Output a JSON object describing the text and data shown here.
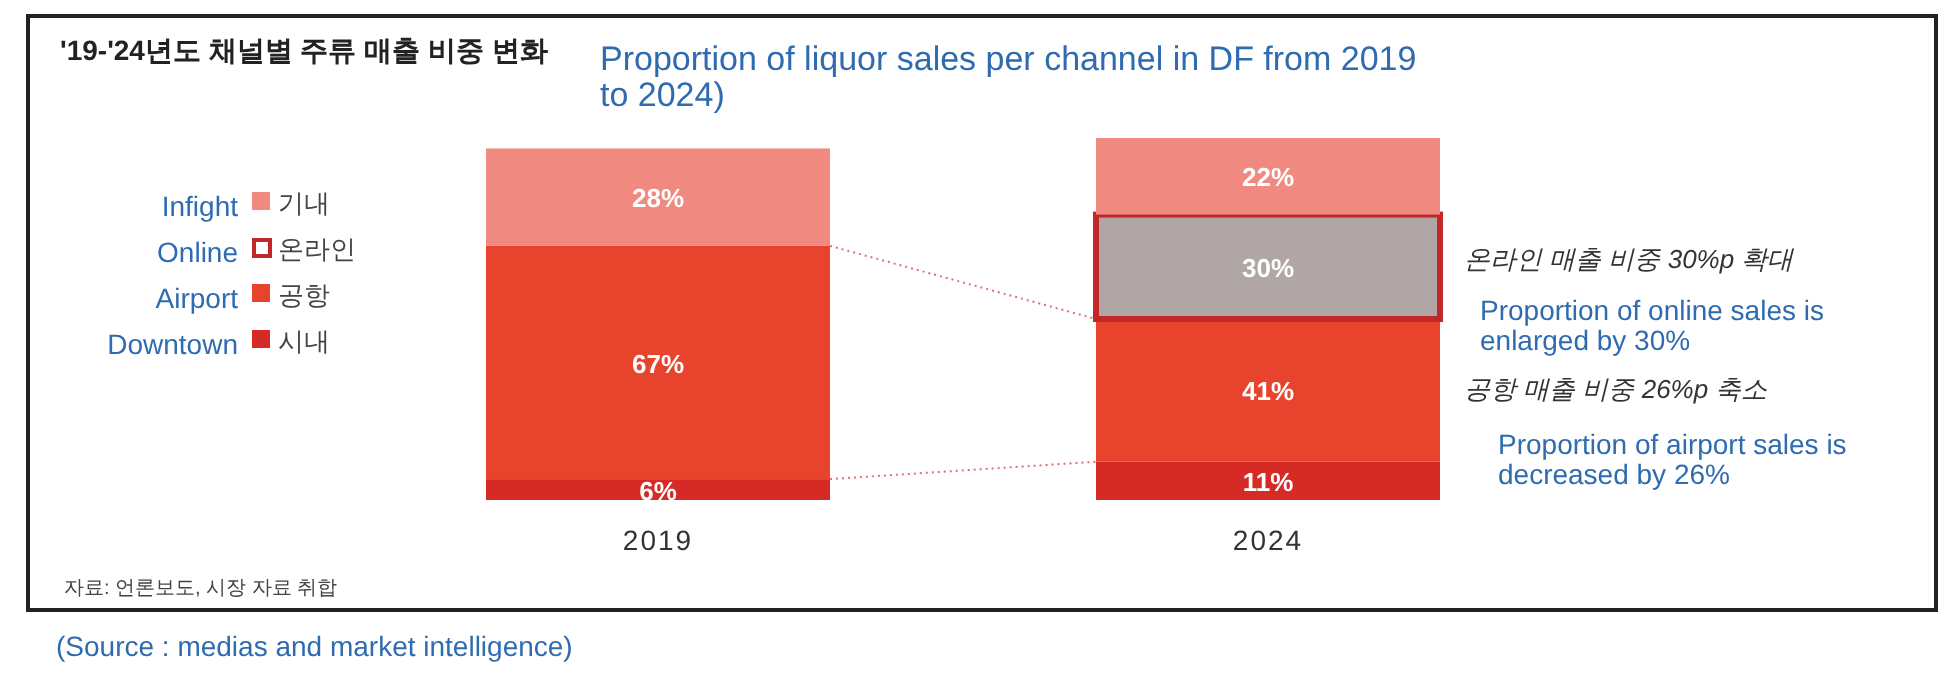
{
  "chart_data": {
    "type": "bar",
    "stacked": true,
    "legend": "left",
    "title": "'19-'24년도 채널별 주류 매출 비중 변화",
    "subtitle": "Proportion of liquor sales per channel in DF from 2019 to 2024)",
    "categories": [
      "2019",
      "2024"
    ],
    "series": [
      {
        "name": "시내",
        "color": "#d62a26",
        "values": [
          6,
          11
        ],
        "value_labels": [
          "6%",
          "11%"
        ]
      },
      {
        "name": "공항",
        "color": "#e8432c",
        "values": [
          67,
          41
        ],
        "value_labels": [
          "67%",
          "41%"
        ]
      },
      {
        "name": "온라인",
        "color": "#b0a6a6",
        "values": [
          null,
          30
        ],
        "value_labels": [
          null,
          "30%"
        ]
      },
      {
        "name": "기내",
        "color": "#f08a80",
        "values": [
          28,
          22
        ],
        "value_labels": [
          "28%",
          "22%"
        ]
      }
    ],
    "annotations": [
      "Infight",
      "Online",
      "Airport",
      "Downtown",
      "온라인 매출 비중 30%p 확대",
      "Proportion of online sales is enlarged by 30%",
      "공항 매출 비중 26%p  축소",
      "Proportion of airport sales is decreased by 26%",
      "자료: 언론보도, 시장 자료 취합",
      "(Source : medias and market intelligence)"
    ]
  }
}
